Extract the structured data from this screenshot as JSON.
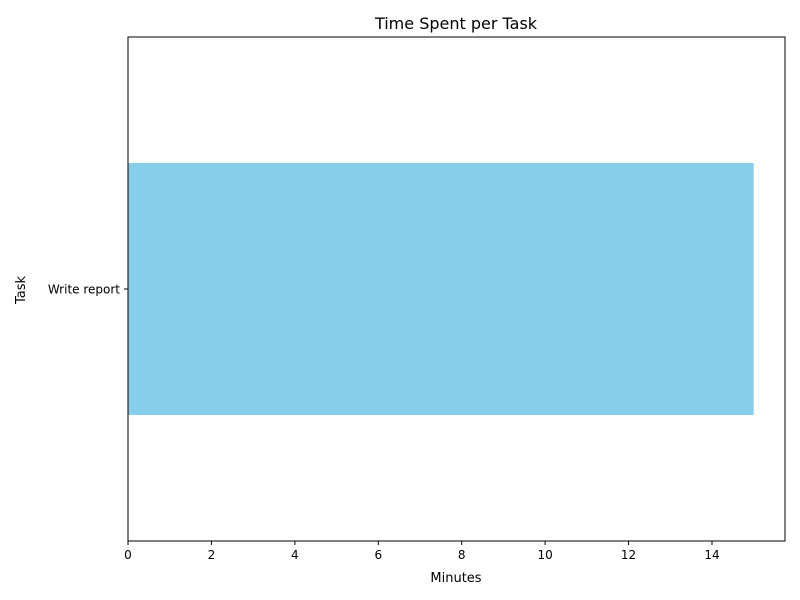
{
  "chart_data": {
    "type": "bar",
    "orientation": "horizontal",
    "title": "Time Spent per Task",
    "xlabel": "Minutes",
    "ylabel": "Task",
    "categories": [
      "Write report"
    ],
    "values": [
      15
    ],
    "xlim": [
      0,
      15.75
    ],
    "xticks": [
      0,
      2,
      4,
      6,
      8,
      10,
      12,
      14
    ],
    "grid": false,
    "legend": "none",
    "bar_color": "#87ceeb"
  }
}
